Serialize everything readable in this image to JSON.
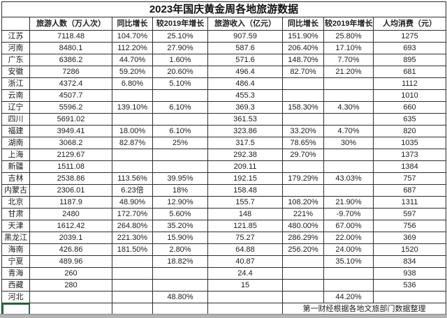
{
  "title": "2023年国庆黄金周各地旅游数据",
  "colors": {
    "selection_green": "#217346",
    "grid_border": "#2d2d2d",
    "background": "#ffffff",
    "bottom_strip": "#b3b3b3"
  },
  "table": {
    "headers": [
      "",
      "旅游人数（万人次）",
      "同比增长",
      "较2019年增长",
      "旅游收入（亿元）",
      "同比增长",
      "较2019年增长",
      "人均消费（元）"
    ],
    "rows": [
      {
        "province": "江苏",
        "values": [
          "7118.48",
          "104.70%",
          "25.10%",
          "907.59",
          "151.90%",
          "25.80%",
          "1275"
        ]
      },
      {
        "province": "河南",
        "values": [
          "8480.1",
          "112.20%",
          "27.90%",
          "587.6",
          "206.40%",
          "17.10%",
          "693"
        ]
      },
      {
        "province": "广东",
        "values": [
          "6386.2",
          "44.70%",
          "1.60%",
          "571.6",
          "148.70%",
          "7.70%",
          "895"
        ]
      },
      {
        "province": "安徽",
        "values": [
          "7286",
          "59.20%",
          "20.60%",
          "496.4",
          "82.70%",
          "21.20%",
          "681"
        ]
      },
      {
        "province": "浙江",
        "values": [
          "4372.4",
          "6.80%",
          "5.10%",
          "486.4",
          "",
          "",
          "1112"
        ]
      },
      {
        "province": "云南",
        "values": [
          "4507.7",
          "",
          "",
          "455.3",
          "",
          "",
          "1010"
        ]
      },
      {
        "province": "辽宁",
        "values": [
          "5596.2",
          "139.10%",
          "6.10%",
          "369.3",
          "158.30%",
          "4.30%",
          "660"
        ]
      },
      {
        "province": "四川",
        "values": [
          "5691.02",
          "",
          "",
          "361.53",
          "",
          "",
          "635"
        ]
      },
      {
        "province": "福建",
        "values": [
          "3949.41",
          "18.00%",
          "6.10%",
          "323.86",
          "33.20%",
          "4.70%",
          "820"
        ]
      },
      {
        "province": "湖南",
        "values": [
          "3068.2",
          "82.87%",
          "25%",
          "317.5",
          "78.65%",
          "30%",
          "1035"
        ]
      },
      {
        "province": "上海",
        "values": [
          "2129.67",
          "",
          "",
          "292.38",
          "29.70%",
          "",
          "1373"
        ]
      },
      {
        "province": "新疆",
        "values": [
          "1511.08",
          "",
          "",
          "209.11",
          "",
          "",
          "1384"
        ]
      },
      {
        "province": "吉林",
        "values": [
          "2538.86",
          "113.56%",
          "39.95%",
          "192.15",
          "179.29%",
          "43.03%",
          "757"
        ]
      },
      {
        "province": "内蒙古",
        "values": [
          "2306.01",
          "6.23倍",
          "18%",
          "158.48",
          "",
          "",
          "687"
        ]
      },
      {
        "province": "北京",
        "values": [
          "1187.9",
          "48.90%",
          "12.90%",
          "155.7",
          "108.20%",
          "21.90%",
          "1311"
        ]
      },
      {
        "province": "甘肃",
        "values": [
          "2480",
          "172.70%",
          "5.60%",
          "148",
          "221%",
          "-9.70%",
          "597"
        ]
      },
      {
        "province": "天津",
        "values": [
          "1612.42",
          "264.80%",
          "35.20%",
          "121.85",
          "480.00%",
          "67.00%",
          "756"
        ]
      },
      {
        "province": "黑龙江",
        "values": [
          "2039.1",
          "221.30%",
          "15.90%",
          "75.27",
          "286.29%",
          "22.00%",
          "369"
        ]
      },
      {
        "province": "海南",
        "values": [
          "426.86",
          "181.50%",
          "2.80%",
          "64.88",
          "256.20%",
          "24.00%",
          "1520"
        ]
      },
      {
        "province": "宁夏",
        "values": [
          "489.96",
          "",
          "18.82%",
          "40.87",
          "",
          "35.10%",
          "834"
        ]
      },
      {
        "province": "青海",
        "values": [
          "260",
          "",
          "",
          "24.4",
          "",
          "",
          "938"
        ]
      },
      {
        "province": "西藏",
        "values": [
          "280",
          "",
          "",
          "15",
          "",
          "",
          "536"
        ]
      },
      {
        "province": "河北",
        "values": [
          "",
          "",
          "48.80%",
          "",
          "",
          "44.20%",
          ""
        ]
      }
    ]
  },
  "footer": {
    "source_note": "第一财经根据各地文旅部门数据整理"
  }
}
